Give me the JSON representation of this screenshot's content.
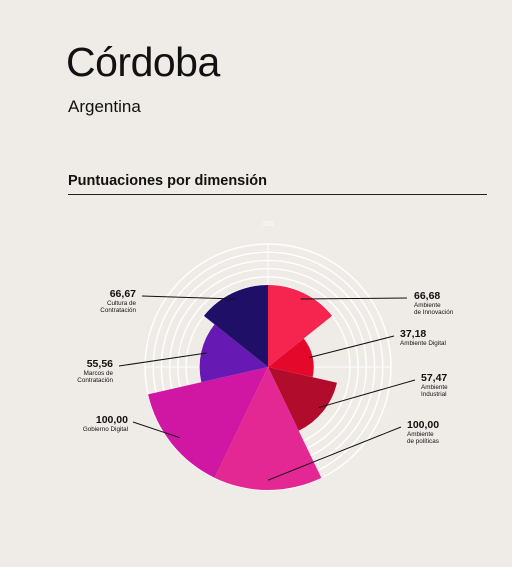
{
  "header": {
    "city": "Córdoba",
    "country": "Argentina"
  },
  "section": {
    "title": "Puntuaciones por dimensión"
  },
  "colors": {
    "accent": "#e0198a",
    "background": "#efebe7"
  },
  "chart_data": {
    "type": "polar-area",
    "title": "Puntuaciones por dimensión",
    "scale_max": 100,
    "scale_label": "100",
    "grid": true,
    "categories": [
      {
        "name": "Ambiente de Innovación",
        "lines": [
          "Ambiente",
          "de Innovación"
        ],
        "value": 66.68,
        "value_label": "66,68",
        "color": "#f6254f"
      },
      {
        "name": "Ambiente Digital",
        "lines": [
          "Ambiente Digital"
        ],
        "value": 37.18,
        "value_label": "37,18",
        "color": "#e4092b"
      },
      {
        "name": "Ambiente Industrial",
        "lines": [
          "Ambiente",
          "Industrial"
        ],
        "value": 57.47,
        "value_label": "57,47",
        "color": "#b10c2b"
      },
      {
        "name": "Ambiente de políticas",
        "lines": [
          "Ambiente",
          "de políticas"
        ],
        "value": 100.0,
        "value_label": "100,00",
        "color": "#e42893"
      },
      {
        "name": "Gobierno Digital",
        "lines": [
          "Gobierno Digital"
        ],
        "value": 100.0,
        "value_label": "100,00",
        "color": "#cf17a4"
      },
      {
        "name": "Marcos de Contratación",
        "lines": [
          "Marcos de",
          "Contratación"
        ],
        "value": 55.56,
        "value_label": "55,56",
        "color": "#6619b3"
      },
      {
        "name": "Cultura de Contratación",
        "lines": [
          "Cultura de",
          "Contratación"
        ],
        "value": 66.67,
        "value_label": "66,67",
        "color": "#1f0f66"
      }
    ]
  }
}
